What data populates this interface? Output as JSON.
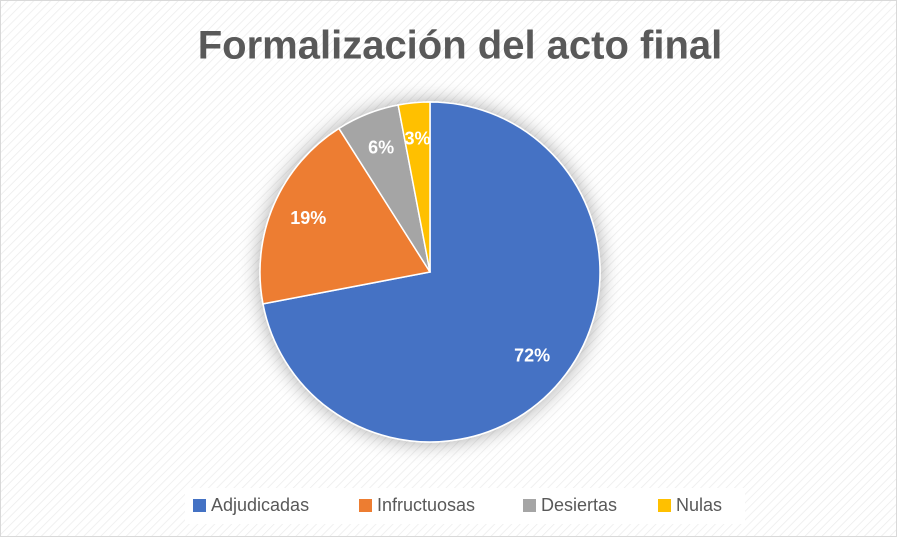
{
  "chart_data": {
    "type": "pie",
    "title": "Formalización del acto final",
    "categories": [
      "Adjudicadas",
      "Infructuosas",
      "Desiertas",
      "Nulas"
    ],
    "values": [
      72,
      19,
      6,
      3
    ],
    "value_labels": [
      "72%",
      "19%",
      "6%",
      "3%"
    ],
    "colors": [
      "#4472c4",
      "#ed7d31",
      "#a5a5a5",
      "#ffc000"
    ],
    "legend": "bottom"
  }
}
